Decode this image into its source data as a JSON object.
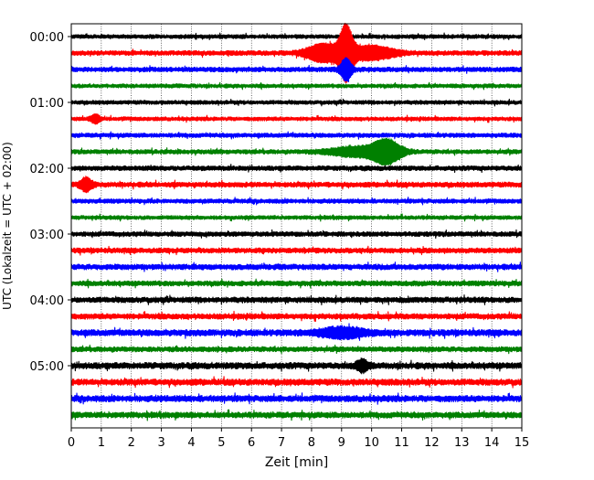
{
  "chart_data": {
    "type": "line",
    "title": "",
    "xlabel": "Zeit  [min]",
    "ylabel": "UTC (Lokalzeit = UTC + 02:00)",
    "xlim": [
      0,
      15
    ],
    "x_ticks": [
      "0",
      "1",
      "2",
      "3",
      "4",
      "5",
      "6",
      "7",
      "8",
      "9",
      "10",
      "11",
      "12",
      "13",
      "14",
      "15"
    ],
    "y_tick_labels": [
      "00:00",
      "01:00",
      "02:00",
      "03:00",
      "04:00",
      "05:00"
    ],
    "grid": "vertical-dotted",
    "trace_interval_minutes": 15,
    "color_cycle": [
      "#000000",
      "#ff0000",
      "#0000ff",
      "#008000"
    ],
    "traces": [
      {
        "start": "00:00",
        "amplitude": 1.0,
        "events": []
      },
      {
        "start": "00:15",
        "amplitude": 1.2,
        "events": [
          {
            "t": 9.15,
            "amp": 12,
            "width": 0.25
          },
          {
            "t": 8.4,
            "amp": 4,
            "width": 0.6
          },
          {
            "t": 10.0,
            "amp": 3,
            "width": 0.8
          }
        ]
      },
      {
        "start": "00:30",
        "amplitude": 1.2,
        "events": [
          {
            "t": 9.15,
            "amp": 5,
            "width": 0.2
          }
        ]
      },
      {
        "start": "00:45",
        "amplitude": 1.0,
        "events": []
      },
      {
        "start": "01:00",
        "amplitude": 1.0,
        "events": []
      },
      {
        "start": "01:15",
        "amplitude": 1.0,
        "events": [
          {
            "t": 0.8,
            "amp": 2,
            "width": 0.15
          }
        ]
      },
      {
        "start": "01:30",
        "amplitude": 1.1,
        "events": []
      },
      {
        "start": "01:45",
        "amplitude": 1.1,
        "events": [
          {
            "t": 10.5,
            "amp": 5,
            "width": 0.5
          },
          {
            "t": 9.5,
            "amp": 2,
            "width": 1.0
          }
        ]
      },
      {
        "start": "02:00",
        "amplitude": 1.2,
        "events": []
      },
      {
        "start": "02:15",
        "amplitude": 1.3,
        "events": [
          {
            "t": 0.5,
            "amp": 3,
            "width": 0.2
          }
        ]
      },
      {
        "start": "02:30",
        "amplitude": 1.1,
        "events": []
      },
      {
        "start": "02:45",
        "amplitude": 1.0,
        "events": []
      },
      {
        "start": "03:00",
        "amplitude": 1.2,
        "events": []
      },
      {
        "start": "03:15",
        "amplitude": 1.3,
        "events": []
      },
      {
        "start": "03:30",
        "amplitude": 1.4,
        "events": []
      },
      {
        "start": "03:45",
        "amplitude": 1.3,
        "events": []
      },
      {
        "start": "04:00",
        "amplitude": 1.4,
        "events": []
      },
      {
        "start": "04:15",
        "amplitude": 1.4,
        "events": []
      },
      {
        "start": "04:30",
        "amplitude": 1.6,
        "events": [
          {
            "t": 9.0,
            "amp": 2,
            "width": 0.8
          }
        ]
      },
      {
        "start": "04:45",
        "amplitude": 1.3,
        "events": []
      },
      {
        "start": "05:00",
        "amplitude": 1.6,
        "events": [
          {
            "t": 9.7,
            "amp": 2.5,
            "width": 0.2
          }
        ]
      },
      {
        "start": "05:15",
        "amplitude": 1.6,
        "events": []
      },
      {
        "start": "05:30",
        "amplitude": 1.6,
        "events": []
      },
      {
        "start": "05:45",
        "amplitude": 1.5,
        "events": []
      }
    ]
  }
}
